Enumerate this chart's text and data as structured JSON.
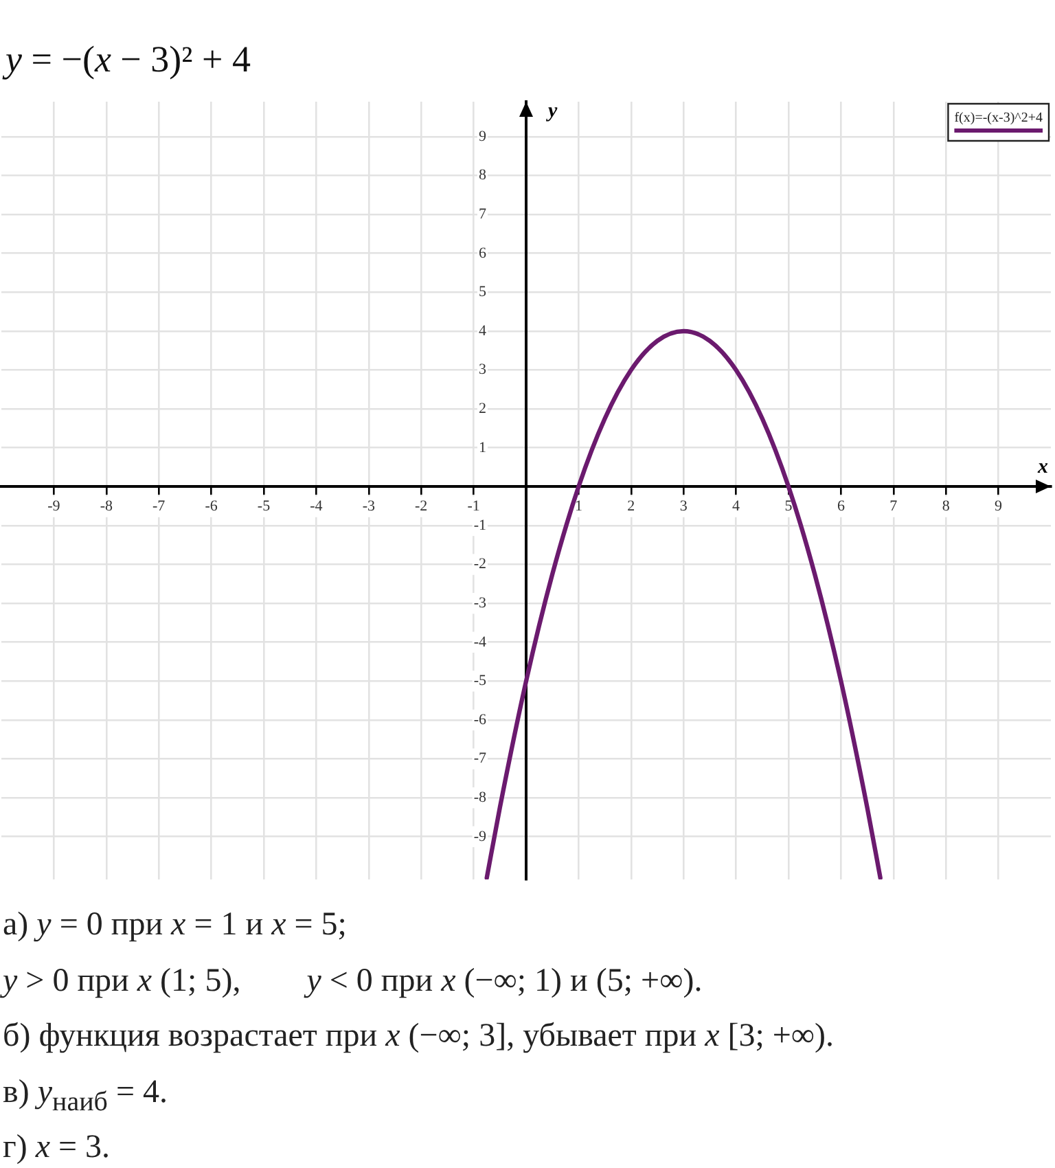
{
  "chart_data": {
    "type": "line",
    "title": "y = −(x − 3)² + 4",
    "xlabel": "x",
    "ylabel": "y",
    "x": [
      -0.75,
      -0.5,
      0,
      0.5,
      1,
      1.5,
      2,
      2.5,
      3,
      3.5,
      4,
      4.5,
      5,
      5.5,
      6,
      6.5,
      6.75
    ],
    "series": [
      {
        "name": "f(x)=-(x-3)^2+4",
        "color": "#6b1a6e",
        "values": [
          -10.06,
          -8.25,
          -5,
          -2.25,
          0,
          1.75,
          3,
          3.75,
          4,
          3.75,
          3,
          1.75,
          0,
          -2.25,
          -5,
          -8.25,
          -10.06
        ]
      }
    ],
    "xlim": [
      -10,
      10
    ],
    "ylim": [
      -10.1,
      9.9
    ],
    "xticks": [
      -9,
      -8,
      -7,
      -6,
      -5,
      -4,
      -3,
      -2,
      -1,
      1,
      2,
      3,
      4,
      5,
      6,
      7,
      8,
      9
    ],
    "yticks": [
      -9,
      -8,
      -7,
      -6,
      -5,
      -4,
      -3,
      -2,
      -1,
      1,
      2,
      3,
      4,
      5,
      6,
      7,
      8,
      9
    ],
    "grid": true,
    "legend": "top right",
    "marker": "none",
    "annotations": [
      "а) y = 0 при x = 1 и x = 5;",
      "y > 0 при x (1; 5),        y < 0 при x (−∞; 1) и (5; +∞).",
      "б) функция возрастает при x (−∞; 3], убывает при x [3; +∞).",
      "в) y$_{наиб}$ = 4.",
      "г) x = 3."
    ]
  }
}
